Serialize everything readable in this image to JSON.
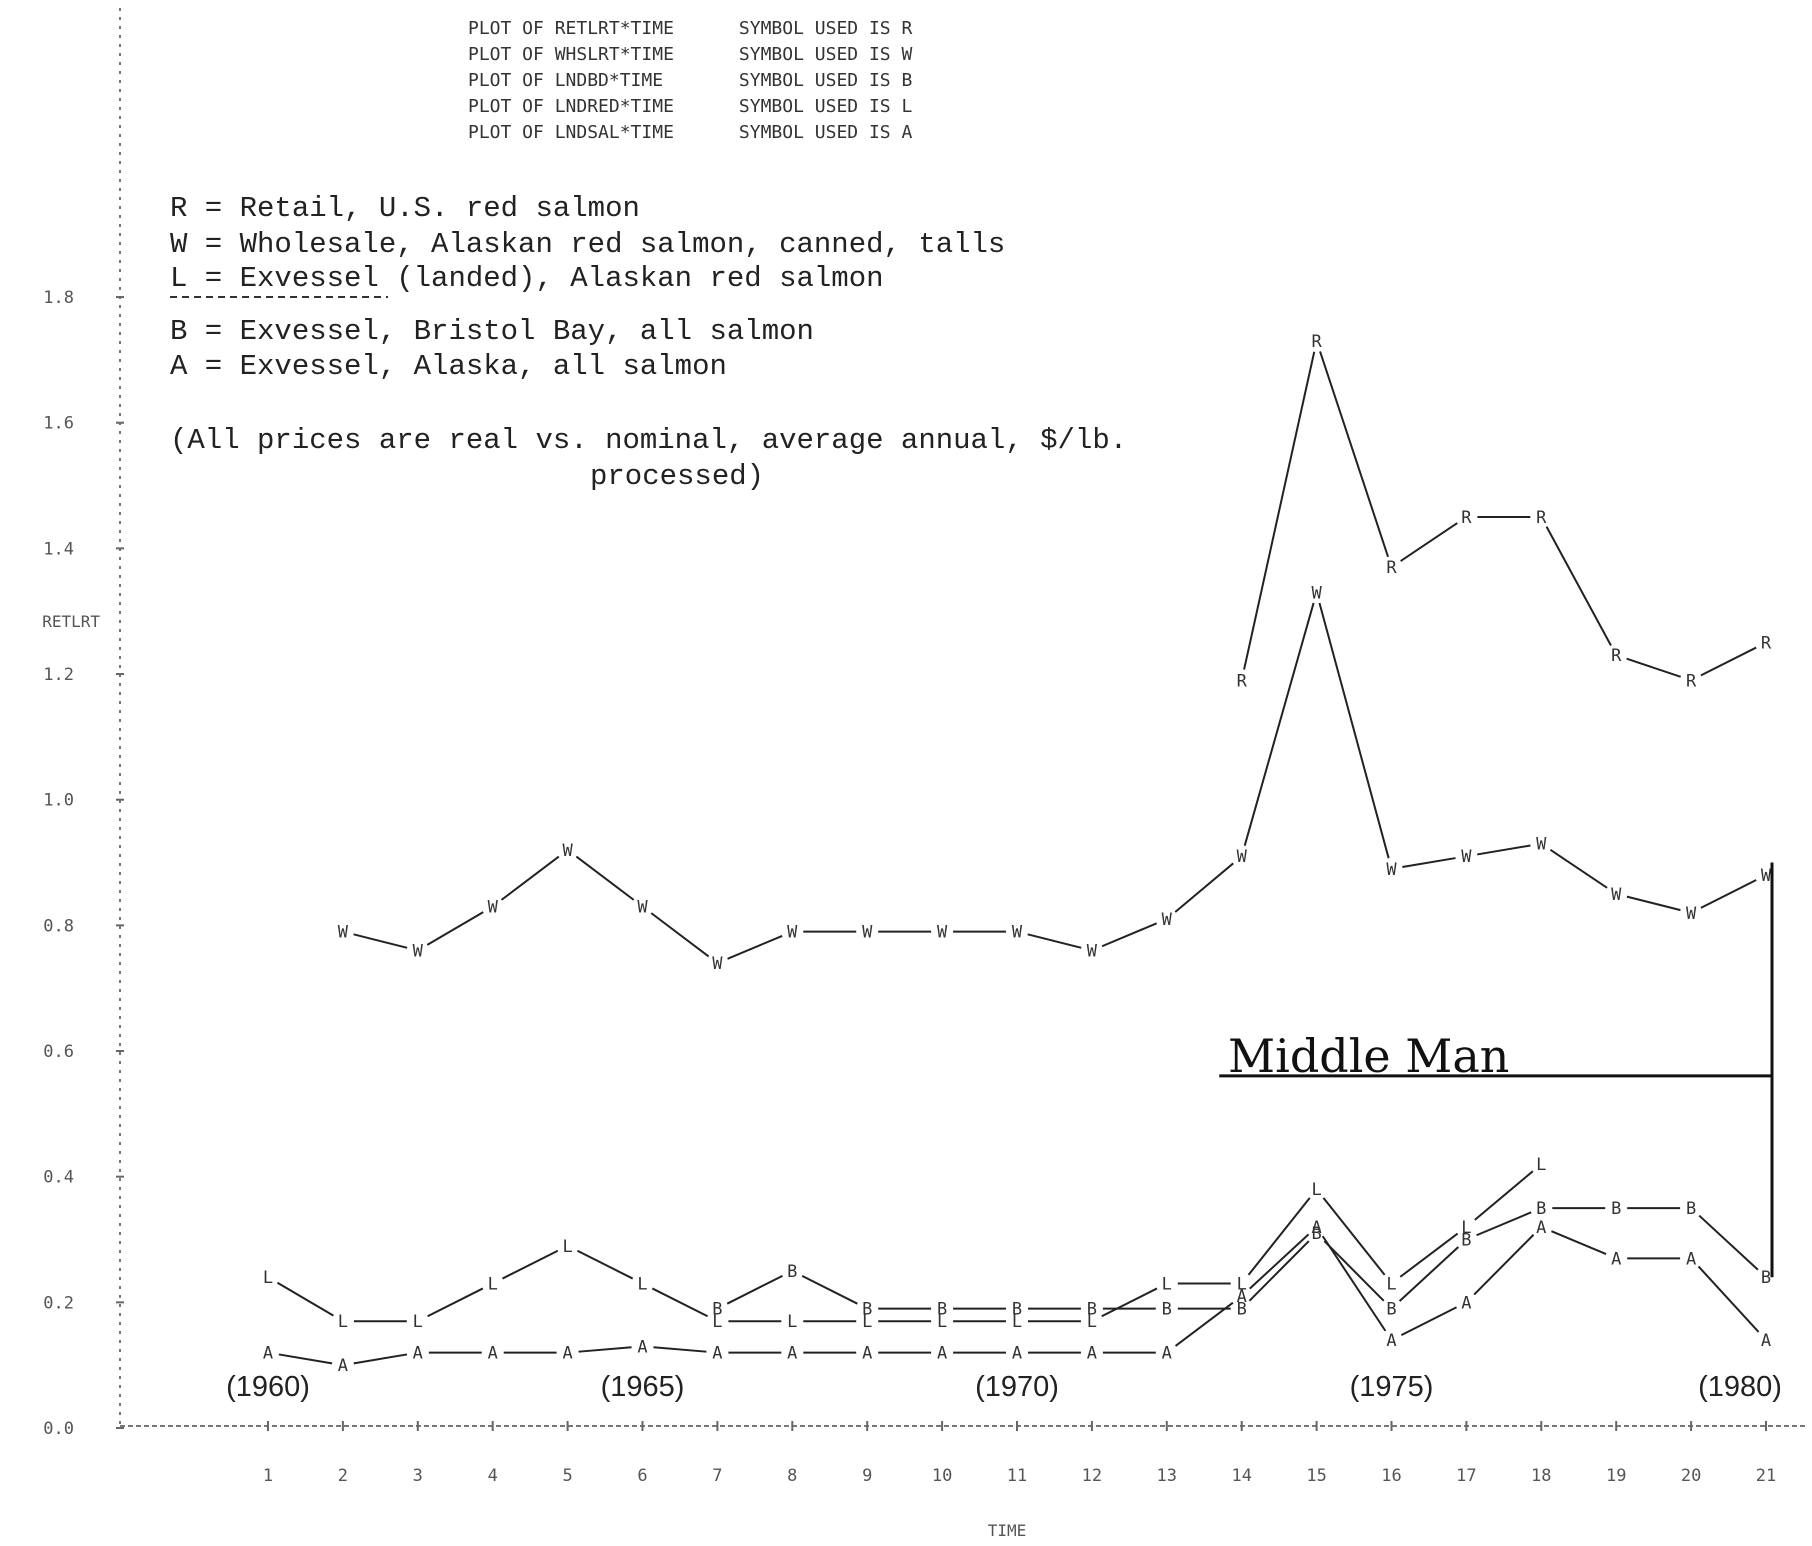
{
  "chart_data": {
    "type": "line",
    "header": [
      "PLOT OF RETLRT*TIME      SYMBOL USED IS R",
      "PLOT OF WHSLRT*TIME      SYMBOL USED IS W",
      "PLOT OF LNDBD*TIME       SYMBOL USED IS B",
      "PLOT OF LNDRED*TIME      SYMBOL USED IS L",
      "PLOT OF LNDSAL*TIME      SYMBOL USED IS A"
    ],
    "legend": [
      "R = Retail, U.S. red salmon",
      "W = Wholesale, Alaskan red salmon, canned, talls",
      "L = Exvessel (landed), Alaskan red salmon",
      "B = Exvessel, Bristol Bay, all salmon",
      "A = Exvessel, Alaska, all salmon"
    ],
    "note": [
      "(All prices are real vs. nominal, average annual, $/lb.",
      "processed)"
    ],
    "ylabel": "RETLRT",
    "xlabel": "TIME",
    "ylim": [
      0.0,
      1.8
    ],
    "yticks": [
      "0.0",
      "0.2",
      "0.4",
      "0.6",
      "0.8",
      "1.0",
      "1.2",
      "1.4",
      "1.6",
      "1.8"
    ],
    "xlim": [
      1,
      21
    ],
    "xticks": [
      "1",
      "2",
      "3",
      "4",
      "5",
      "6",
      "7",
      "8",
      "9",
      "10",
      "11",
      "12",
      "13",
      "14",
      "15",
      "16",
      "17",
      "18",
      "19",
      "20",
      "21"
    ],
    "year_labels": [
      {
        "x": 1,
        "label": "(1960)"
      },
      {
        "x": 6,
        "label": "(1965)"
      },
      {
        "x": 11,
        "label": "(1970)"
      },
      {
        "x": 16,
        "label": "(1975)"
      },
      {
        "x": 21,
        "label": "(1980)"
      }
    ],
    "annotation": {
      "text": "Middle Man",
      "y": 0.57,
      "x_from": 13.7,
      "x_to": 21.1
    },
    "series": [
      {
        "symbol": "R",
        "x": [
          14,
          15,
          16,
          17,
          18,
          19,
          20,
          21
        ],
        "y": [
          1.19,
          1.73,
          1.37,
          1.45,
          1.45,
          1.23,
          1.19,
          1.25
        ]
      },
      {
        "symbol": "W",
        "x": [
          2,
          3,
          4,
          5,
          6,
          7,
          8,
          9,
          10,
          11,
          12,
          13,
          14,
          15,
          16,
          17,
          18,
          19,
          20,
          21
        ],
        "y": [
          0.79,
          0.76,
          0.83,
          0.92,
          0.83,
          0.74,
          0.79,
          0.79,
          0.79,
          0.79,
          0.76,
          0.81,
          0.91,
          1.33,
          0.89,
          0.91,
          0.93,
          0.85,
          0.82,
          0.88
        ]
      },
      {
        "symbol": "L",
        "x": [
          1,
          2,
          3,
          4,
          5,
          6,
          7,
          8,
          9,
          10,
          11,
          12,
          13,
          14,
          15,
          16,
          17,
          18
        ],
        "y": [
          0.24,
          0.17,
          0.17,
          0.23,
          0.29,
          0.23,
          0.17,
          0.17,
          0.17,
          0.17,
          0.17,
          0.17,
          0.23,
          0.23,
          0.38,
          0.23,
          0.32,
          0.42
        ]
      },
      {
        "symbol": "B",
        "x": [
          7,
          8,
          9,
          10,
          11,
          12,
          13,
          14,
          15,
          16,
          17,
          18,
          19,
          20,
          21
        ],
        "y": [
          0.19,
          0.25,
          0.19,
          0.19,
          0.19,
          0.19,
          0.19,
          0.19,
          0.31,
          0.19,
          0.3,
          0.35,
          0.35,
          0.35,
          0.24
        ]
      },
      {
        "symbol": "A",
        "x": [
          1,
          2,
          3,
          4,
          5,
          6,
          7,
          8,
          9,
          10,
          11,
          12,
          13,
          14,
          15,
          16,
          17,
          18,
          19,
          20,
          21
        ],
        "y": [
          0.12,
          0.1,
          0.12,
          0.12,
          0.12,
          0.13,
          0.12,
          0.12,
          0.12,
          0.12,
          0.12,
          0.12,
          0.12,
          0.21,
          0.32,
          0.14,
          0.2,
          0.32,
          0.27,
          0.27,
          0.14
        ]
      }
    ]
  }
}
